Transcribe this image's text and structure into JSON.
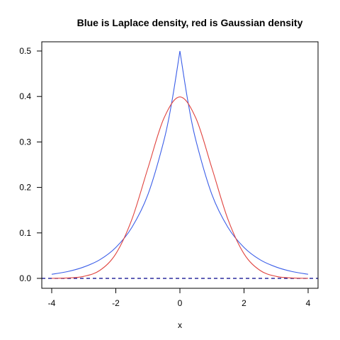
{
  "chart_data": {
    "type": "line",
    "title": "Blue is Laplace density, red is Gaussian density",
    "xlabel": "x",
    "ylabel": "",
    "xlim": [
      -4,
      4
    ],
    "ylim": [
      0,
      0.5
    ],
    "x_ticks": [
      -4,
      -2,
      0,
      2,
      4
    ],
    "y_ticks": [
      0.0,
      0.1,
      0.2,
      0.3,
      0.4,
      0.5
    ],
    "x_tick_labels": [
      "-4",
      "-2",
      "0",
      "2",
      "4"
    ],
    "y_tick_labels": [
      "0.0",
      "0.1",
      "0.2",
      "0.3",
      "0.4",
      "0.5"
    ],
    "grid": false,
    "series": [
      {
        "color": "#3b5ee8",
        "x": [
          -4,
          -3.5,
          -3,
          -2.5,
          -2,
          -1.5,
          -1,
          -0.5,
          -0.25,
          0,
          0.25,
          0.5,
          1,
          1.5,
          2,
          2.5,
          3,
          3.5,
          4
        ],
        "y": [
          0.009,
          0.015,
          0.025,
          0.041,
          0.068,
          0.112,
          0.184,
          0.303,
          0.389,
          0.5,
          0.389,
          0.303,
          0.184,
          0.112,
          0.068,
          0.041,
          0.025,
          0.015,
          0.009
        ]
      },
      {
        "color": "#e0443f",
        "x": [
          -4,
          -3.5,
          -3,
          -2.5,
          -2,
          -1.5,
          -1,
          -0.5,
          0,
          0.5,
          1,
          1.5,
          2,
          2.5,
          3,
          3.5,
          4
        ],
        "y": [
          0.0001,
          0.0009,
          0.0044,
          0.0175,
          0.054,
          0.1295,
          0.242,
          0.352,
          0.399,
          0.352,
          0.242,
          0.1295,
          0.054,
          0.0175,
          0.0044,
          0.0009,
          0.0001
        ]
      }
    ],
    "reference_line": {
      "y": 0,
      "style": "dashed",
      "color": "#00008b"
    }
  }
}
